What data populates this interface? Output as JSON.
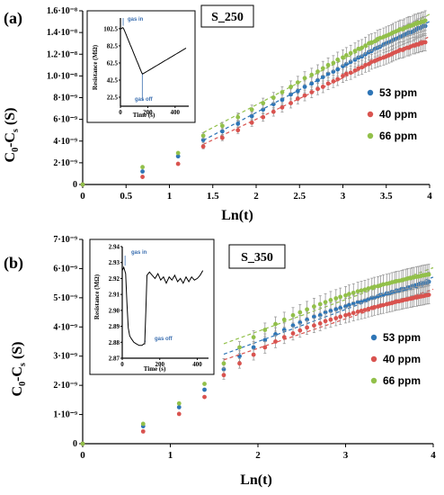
{
  "chart_data": [
    {
      "type": "scatter",
      "panel_label": "(a)",
      "sample_label": "S_250",
      "xlabel": "Ln(t)",
      "ylabel": "C",
      "ylabel_sub1": "0",
      "ylabel_mid": "-C",
      "ylabel_sub2": "s",
      "ylabel_tail": " (S)",
      "xlim": [
        0,
        4
      ],
      "ylim": [
        0,
        1.6e-08
      ],
      "x_ticks": [
        "0",
        "0.5",
        "1",
        "1.5",
        "2",
        "2.5",
        "3",
        "3.5",
        "4"
      ],
      "y_ticks": [
        "0",
        "2·10⁻⁹",
        "4·10⁻⁹",
        "6·10⁻⁹",
        "8·10⁻⁹",
        "1.0·10⁻⁸",
        "1.2·10⁻⁸",
        "1.4·10⁻⁸",
        "1.6·10⁻⁸"
      ],
      "y_tick_values": [
        0,
        2e-09,
        4e-09,
        6e-09,
        8e-09,
        1e-08,
        1.2e-08,
        1.4e-08,
        1.6e-08
      ],
      "x_tick_values": [
        0,
        0.5,
        1,
        1.5,
        2,
        2.5,
        3,
        3.5,
        4
      ],
      "x": [
        0,
        0.69,
        1.1,
        1.39,
        1.61,
        1.79,
        1.95,
        2.08,
        2.2,
        2.3,
        2.4,
        2.48,
        2.56,
        2.64,
        2.71,
        2.77,
        2.83,
        2.89,
        2.94,
        3.0,
        3.04,
        3.09,
        3.14,
        3.18,
        3.22,
        3.26,
        3.3,
        3.33,
        3.37,
        3.4,
        3.43,
        3.47,
        3.5,
        3.53,
        3.56,
        3.58,
        3.61,
        3.64,
        3.66,
        3.69,
        3.71,
        3.74,
        3.76,
        3.78,
        3.81,
        3.83,
        3.85,
        3.87,
        3.89,
        3.91,
        3.93,
        3.95
      ],
      "series": [
        {
          "name": "53 ppm",
          "color": "#2e75b6",
          "values": [
            0,
            1.2e-09,
            2.6e-09,
            4.1e-09,
            4.9e-09,
            5.6e-09,
            6.3e-09,
            6.9e-09,
            7.4e-09,
            7.8e-09,
            8.3e-09,
            8.6e-09,
            9e-09,
            9.3e-09,
            9.6e-09,
            9.9e-09,
            1.02e-08,
            1.04e-08,
            1.06e-08,
            1.09e-08,
            1.11e-08,
            1.13e-08,
            1.15e-08,
            1.17e-08,
            1.18e-08,
            1.2e-08,
            1.22e-08,
            1.23e-08,
            1.25e-08,
            1.26e-08,
            1.27e-08,
            1.29e-08,
            1.3e-08,
            1.31e-08,
            1.32e-08,
            1.33e-08,
            1.34e-08,
            1.35e-08,
            1.36e-08,
            1.37e-08,
            1.38e-08,
            1.39e-08,
            1.4e-08,
            1.4e-08,
            1.41e-08,
            1.42e-08,
            1.43e-08,
            1.44e-08,
            1.44e-08,
            1.45e-08,
            1.46e-08,
            1.46e-08
          ]
        },
        {
          "name": "40 ppm",
          "color": "#d9534f",
          "values": [
            0,
            7e-10,
            1.9e-09,
            3.5e-09,
            4.3e-09,
            5e-09,
            5.7e-09,
            6.2e-09,
            6.7e-09,
            7.1e-09,
            7.5e-09,
            7.9e-09,
            8.2e-09,
            8.5e-09,
            8.8e-09,
            9e-09,
            9.3e-09,
            9.5e-09,
            9.7e-09,
            1e-08,
            1.02e-08,
            1.03e-08,
            1.05e-08,
            1.07e-08,
            1.08e-08,
            1.1e-08,
            1.11e-08,
            1.13e-08,
            1.14e-08,
            1.15e-08,
            1.16e-08,
            1.17e-08,
            1.18e-08,
            1.19e-08,
            1.2e-08,
            1.21e-08,
            1.22e-08,
            1.23e-08,
            1.24e-08,
            1.24e-08,
            1.25e-08,
            1.26e-08,
            1.26e-08,
            1.27e-08,
            1.28e-08,
            1.28e-08,
            1.29e-08,
            1.29e-08,
            1.3e-08,
            1.3e-08,
            1.31e-08,
            1.31e-08
          ]
        },
        {
          "name": "66 ppm",
          "color": "#92c04a",
          "values": [
            0,
            1.6e-09,
            2.9e-09,
            4.5e-09,
            5.4e-09,
            6.2e-09,
            6.9e-09,
            7.5e-09,
            8e-09,
            8.5e-09,
            9e-09,
            9.4e-09,
            9.8e-09,
            1.01e-08,
            1.04e-08,
            1.07e-08,
            1.1e-08,
            1.12e-08,
            1.15e-08,
            1.17e-08,
            1.19e-08,
            1.21e-08,
            1.23e-08,
            1.25e-08,
            1.26e-08,
            1.28e-08,
            1.3e-08,
            1.31e-08,
            1.32e-08,
            1.34e-08,
            1.35e-08,
            1.36e-08,
            1.37e-08,
            1.38e-08,
            1.39e-08,
            1.4e-08,
            1.41e-08,
            1.42e-08,
            1.43e-08,
            1.43e-08,
            1.44e-08,
            1.45e-08,
            1.46e-08,
            1.46e-08,
            1.47e-08,
            1.48e-08,
            1.48e-08,
            1.49e-08,
            1.49e-08,
            1.5e-08,
            1.5e-08,
            1.51e-08
          ]
        }
      ],
      "inset": {
        "xlabel": "Time (s)",
        "ylabel": "Resistance (MΩ)",
        "x_ticks": [
          "0",
          "200",
          "400"
        ],
        "x_tick_values": [
          0,
          200,
          400
        ],
        "y_ticks": [
          "102.5",
          "82.5",
          "62.5",
          "42.5",
          "22.5"
        ],
        "y_tick_values": [
          102.5,
          82.5,
          62.5,
          42.5,
          22.5
        ],
        "xlim": [
          0,
          500
        ],
        "ylim": [
          12,
          115
        ],
        "gas_in": "gas in",
        "gas_off": "gas off"
      }
    },
    {
      "type": "scatter",
      "panel_label": "(b)",
      "sample_label": "S_350",
      "xlabel": "Ln(t)",
      "ylabel": "C",
      "ylabel_sub1": "0",
      "ylabel_mid": "-C",
      "ylabel_sub2": "s",
      "ylabel_tail": " (S)",
      "xlim": [
        0,
        4
      ],
      "ylim": [
        0,
        7e-09
      ],
      "x_ticks": [
        "0",
        "1",
        "2",
        "3",
        "4"
      ],
      "x_tick_values": [
        0,
        1,
        2,
        3,
        4
      ],
      "y_ticks": [
        "0",
        "1·10⁻⁹",
        "2·10⁻⁹",
        "3·10⁻⁹",
        "4·10⁻⁹",
        "5·10⁻⁹",
        "6·10⁻⁹",
        "7·10⁻⁹"
      ],
      "y_tick_values": [
        0,
        1e-09,
        2e-09,
        3e-09,
        4e-09,
        5e-09,
        6e-09,
        7e-09
      ],
      "x": [
        0,
        0.69,
        1.1,
        1.39,
        1.61,
        1.79,
        1.95,
        2.08,
        2.2,
        2.3,
        2.4,
        2.48,
        2.56,
        2.64,
        2.71,
        2.77,
        2.83,
        2.89,
        2.94,
        3.0,
        3.04,
        3.09,
        3.14,
        3.18,
        3.22,
        3.26,
        3.3,
        3.33,
        3.37,
        3.4,
        3.43,
        3.47,
        3.5,
        3.53,
        3.56,
        3.58,
        3.61,
        3.64,
        3.66,
        3.69,
        3.71,
        3.74,
        3.76,
        3.78,
        3.81,
        3.83,
        3.85,
        3.87,
        3.89,
        3.91,
        3.93,
        3.95
      ],
      "series": [
        {
          "name": "53 ppm",
          "color": "#2e75b6",
          "values": [
            0,
            6e-10,
            1.25e-09,
            1.85e-09,
            2.55e-09,
            3e-09,
            3.3e-09,
            3.55e-09,
            3.75e-09,
            3.9e-09,
            4.05e-09,
            4.15e-09,
            4.25e-09,
            4.35e-09,
            4.4e-09,
            4.5e-09,
            4.55e-09,
            4.6e-09,
            4.65e-09,
            4.7e-09,
            4.75e-09,
            4.8e-09,
            4.85e-09,
            4.85e-09,
            4.9e-09,
            4.95e-09,
            5e-09,
            5e-09,
            5.05e-09,
            5.1e-09,
            5.1e-09,
            5.15e-09,
            5.15e-09,
            5.2e-09,
            5.2e-09,
            5.25e-09,
            5.25e-09,
            5.3e-09,
            5.3e-09,
            5.3e-09,
            5.35e-09,
            5.35e-09,
            5.4e-09,
            5.4e-09,
            5.4e-09,
            5.45e-09,
            5.45e-09,
            5.45e-09,
            5.5e-09,
            5.5e-09,
            5.5e-09,
            5.55e-09
          ]
        },
        {
          "name": "40 ppm",
          "color": "#d9534f",
          "values": [
            0,
            4.2e-10,
            1.02e-09,
            1.6e-09,
            2.35e-09,
            2.75e-09,
            3.05e-09,
            3.3e-09,
            3.5e-09,
            3.65e-09,
            3.78e-09,
            3.88e-09,
            3.98e-09,
            4.05e-09,
            4.12e-09,
            4.2e-09,
            4.25e-09,
            4.3e-09,
            4.35e-09,
            4.4e-09,
            4.43e-09,
            4.48e-09,
            4.52e-09,
            4.55e-09,
            4.58e-09,
            4.62e-09,
            4.65e-09,
            4.68e-09,
            4.7e-09,
            4.73e-09,
            4.75e-09,
            4.78e-09,
            4.8e-09,
            4.82e-09,
            4.85e-09,
            4.87e-09,
            4.88e-09,
            4.9e-09,
            4.92e-09,
            4.94e-09,
            4.95e-09,
            4.97e-09,
            4.98e-09,
            5e-09,
            5.01e-09,
            5.03e-09,
            5.04e-09,
            5.05e-09,
            5.06e-09,
            5.08e-09,
            5.09e-09,
            5.1e-09
          ]
        },
        {
          "name": "66 ppm",
          "color": "#92c04a",
          "values": [
            0,
            6.8e-10,
            1.38e-09,
            2.05e-09,
            2.75e-09,
            3.3e-09,
            3.65e-09,
            3.9e-09,
            4.1e-09,
            4.25e-09,
            4.4e-09,
            4.5e-09,
            4.6e-09,
            4.7e-09,
            4.78e-09,
            4.85e-09,
            4.92e-09,
            4.98e-09,
            5.03e-09,
            5.08e-09,
            5.13e-09,
            5.17e-09,
            5.22e-09,
            5.25e-09,
            5.28e-09,
            5.32e-09,
            5.35e-09,
            5.38e-09,
            5.4e-09,
            5.43e-09,
            5.46e-09,
            5.48e-09,
            5.5e-09,
            5.53e-09,
            5.55e-09,
            5.57e-09,
            5.58e-09,
            5.6e-09,
            5.62e-09,
            5.64e-09,
            5.66e-09,
            5.67e-09,
            5.69e-09,
            5.7e-09,
            5.72e-09,
            5.73e-09,
            5.74e-09,
            5.76e-09,
            5.77e-09,
            5.78e-09,
            5.79e-09,
            5.8e-09
          ]
        }
      ],
      "inset": {
        "xlabel": "Time (s)",
        "ylabel": "Resistance (MΩ)",
        "x_ticks": [
          "0",
          "200",
          "400"
        ],
        "x_tick_values": [
          0,
          200,
          400
        ],
        "y_ticks": [
          "2.94",
          "2.93",
          "2.92",
          "2.91",
          "2.90",
          "2.89",
          "2.88",
          "2.87"
        ],
        "y_tick_values": [
          2.94,
          2.93,
          2.92,
          2.91,
          2.9,
          2.89,
          2.88,
          2.87
        ],
        "xlim": [
          0,
          460
        ],
        "ylim": [
          2.87,
          2.94
        ],
        "gas_in": "gas in",
        "gas_off": "gas off"
      }
    }
  ]
}
